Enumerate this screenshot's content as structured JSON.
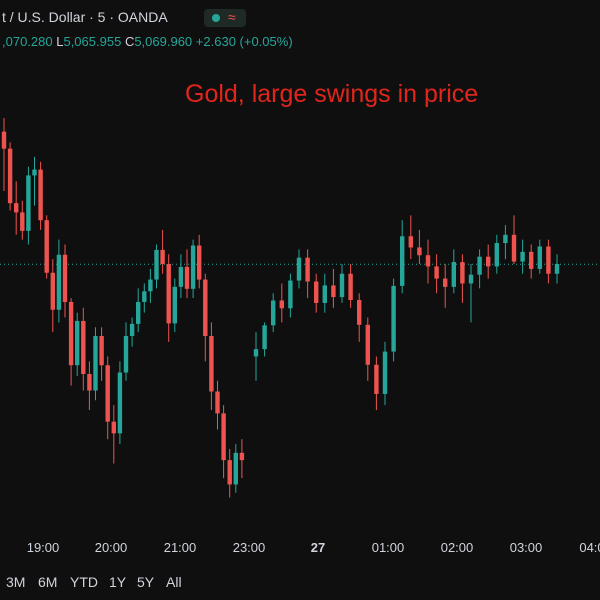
{
  "header": {
    "symbol_text": "t / U.S. Dollar · 5 · OANDA",
    "status_glyph": "≈",
    "open_value": ",070.280",
    "low_label": "L",
    "low_value": "5,065.955",
    "close_label": "C",
    "close_value": "5,069.960",
    "change": "+2.630 (+0.05%)"
  },
  "annotation": "Gold, large swings in price",
  "colors": {
    "background": "#0f0f0f",
    "up": "#26a69a",
    "down": "#ef5350",
    "annotation": "#e0261c",
    "price_line": "#26a69a"
  },
  "time_axis": {
    "ticks": [
      "19:00",
      "20:00",
      "21:00",
      "23:00",
      "27",
      "01:00",
      "02:00",
      "03:00",
      "04:0"
    ]
  },
  "range_buttons": [
    "3M",
    "6M",
    "YTD",
    "1Y",
    "5Y",
    "All"
  ],
  "chart_data": {
    "type": "candlestick",
    "interval": "5 minutes",
    "current_price": 5069.96,
    "ylim": [
      5020,
      5110
    ],
    "candles": [
      {
        "o": 5097.2,
        "h": 5100.0,
        "l": 5085.0,
        "c": 5093.7
      },
      {
        "o": 5093.7,
        "h": 5095.0,
        "l": 5081.0,
        "c": 5082.5
      },
      {
        "o": 5082.5,
        "h": 5087.0,
        "l": 5076.0,
        "c": 5080.6
      },
      {
        "o": 5080.6,
        "h": 5083.0,
        "l": 5075.0,
        "c": 5076.8
      },
      {
        "o": 5076.8,
        "h": 5090.0,
        "l": 5074.0,
        "c": 5088.2
      },
      {
        "o": 5088.2,
        "h": 5092.0,
        "l": 5082.0,
        "c": 5089.4
      },
      {
        "o": 5089.4,
        "h": 5091.0,
        "l": 5077.0,
        "c": 5079.0
      },
      {
        "o": 5079.0,
        "h": 5080.0,
        "l": 5067.0,
        "c": 5068.2
      },
      {
        "o": 5068.2,
        "h": 5071.0,
        "l": 5056.0,
        "c": 5060.6
      },
      {
        "o": 5060.6,
        "h": 5075.0,
        "l": 5058.0,
        "c": 5071.9
      },
      {
        "o": 5071.9,
        "h": 5074.0,
        "l": 5059.0,
        "c": 5062.2
      },
      {
        "o": 5062.2,
        "h": 5063.0,
        "l": 5045.0,
        "c": 5049.2
      },
      {
        "o": 5049.2,
        "h": 5060.0,
        "l": 5047.0,
        "c": 5058.3
      },
      {
        "o": 5058.3,
        "h": 5061.0,
        "l": 5044.0,
        "c": 5047.4
      },
      {
        "o": 5047.4,
        "h": 5050.0,
        "l": 5040.0,
        "c": 5044.0
      },
      {
        "o": 5044.0,
        "h": 5057.0,
        "l": 5042.0,
        "c": 5055.2
      },
      {
        "o": 5055.2,
        "h": 5057.0,
        "l": 5046.0,
        "c": 5049.2
      },
      {
        "o": 5049.2,
        "h": 5051.0,
        "l": 5034.0,
        "c": 5037.6
      },
      {
        "o": 5037.6,
        "h": 5041.0,
        "l": 5029.0,
        "c": 5035.2
      },
      {
        "o": 5035.2,
        "h": 5050.0,
        "l": 5033.0,
        "c": 5047.7
      },
      {
        "o": 5047.7,
        "h": 5058.0,
        "l": 5046.0,
        "c": 5055.2
      },
      {
        "o": 5055.2,
        "h": 5059.0,
        "l": 5053.0,
        "c": 5057.7
      },
      {
        "o": 5057.7,
        "h": 5065.0,
        "l": 5056.0,
        "c": 5062.2
      },
      {
        "o": 5062.2,
        "h": 5066.0,
        "l": 5060.0,
        "c": 5064.4
      },
      {
        "o": 5064.4,
        "h": 5069.0,
        "l": 5062.0,
        "c": 5066.8
      },
      {
        "o": 5066.8,
        "h": 5074.0,
        "l": 5065.0,
        "c": 5072.9
      },
      {
        "o": 5072.9,
        "h": 5077.0,
        "l": 5068.0,
        "c": 5070.0
      },
      {
        "o": 5070.0,
        "h": 5072.0,
        "l": 5054.0,
        "c": 5057.8
      },
      {
        "o": 5057.8,
        "h": 5067.0,
        "l": 5056.0,
        "c": 5065.3
      },
      {
        "o": 5065.3,
        "h": 5072.0,
        "l": 5063.0,
        "c": 5069.4
      },
      {
        "o": 5069.4,
        "h": 5073.0,
        "l": 5063.0,
        "c": 5064.9
      },
      {
        "o": 5064.9,
        "h": 5075.0,
        "l": 5063.0,
        "c": 5073.8
      },
      {
        "o": 5073.8,
        "h": 5076.0,
        "l": 5065.0,
        "c": 5066.8
      },
      {
        "o": 5066.8,
        "h": 5068.0,
        "l": 5050.0,
        "c": 5055.2
      },
      {
        "o": 5055.2,
        "h": 5058.0,
        "l": 5040.0,
        "c": 5043.8
      },
      {
        "o": 5043.8,
        "h": 5046.0,
        "l": 5036.0,
        "c": 5039.3
      },
      {
        "o": 5039.3,
        "h": 5041.0,
        "l": 5026.0,
        "c": 5029.7
      },
      {
        "o": 5029.7,
        "h": 5032.0,
        "l": 5022.0,
        "c": 5024.7
      },
      {
        "o": 5024.7,
        "h": 5033.0,
        "l": 5023.0,
        "c": 5031.2
      },
      {
        "o": 5031.2,
        "h": 5034.0,
        "l": 5026.0,
        "c": 5029.7
      }
    ],
    "candles_after_gap": [
      {
        "o": 5051.0,
        "h": 5056.0,
        "l": 5046.0,
        "c": 5052.5
      },
      {
        "o": 5052.5,
        "h": 5058.0,
        "l": 5051.0,
        "c": 5057.4
      },
      {
        "o": 5057.4,
        "h": 5064.0,
        "l": 5056.0,
        "c": 5062.5
      },
      {
        "o": 5062.5,
        "h": 5066.0,
        "l": 5058.0,
        "c": 5060.9
      },
      {
        "o": 5060.9,
        "h": 5068.0,
        "l": 5059.0,
        "c": 5066.6
      },
      {
        "o": 5066.6,
        "h": 5073.0,
        "l": 5065.0,
        "c": 5071.3
      },
      {
        "o": 5071.3,
        "h": 5073.0,
        "l": 5063.0,
        "c": 5066.4
      },
      {
        "o": 5066.4,
        "h": 5068.0,
        "l": 5060.0,
        "c": 5062.0
      },
      {
        "o": 5062.0,
        "h": 5068.0,
        "l": 5060.0,
        "c": 5065.6
      },
      {
        "o": 5065.6,
        "h": 5069.0,
        "l": 5061.0,
        "c": 5063.2
      },
      {
        "o": 5063.2,
        "h": 5070.0,
        "l": 5062.0,
        "c": 5068.0
      },
      {
        "o": 5068.0,
        "h": 5070.0,
        "l": 5061.0,
        "c": 5062.6
      },
      {
        "o": 5062.6,
        "h": 5064.0,
        "l": 5054.0,
        "c": 5057.5
      },
      {
        "o": 5057.5,
        "h": 5059.0,
        "l": 5046.0,
        "c": 5049.3
      },
      {
        "o": 5049.3,
        "h": 5051.0,
        "l": 5040.0,
        "c": 5043.3
      },
      {
        "o": 5043.3,
        "h": 5054.0,
        "l": 5041.0,
        "c": 5052.0
      },
      {
        "o": 5052.0,
        "h": 5067.0,
        "l": 5050.0,
        "c": 5065.5
      },
      {
        "o": 5065.5,
        "h": 5079.0,
        "l": 5064.0,
        "c": 5075.7
      },
      {
        "o": 5075.7,
        "h": 5080.0,
        "l": 5071.0,
        "c": 5073.4
      },
      {
        "o": 5073.4,
        "h": 5077.0,
        "l": 5070.0,
        "c": 5071.8
      },
      {
        "o": 5071.8,
        "h": 5075.0,
        "l": 5066.0,
        "c": 5069.5
      },
      {
        "o": 5069.5,
        "h": 5072.0,
        "l": 5064.0,
        "c": 5067.0
      },
      {
        "o": 5067.0,
        "h": 5070.0,
        "l": 5061.0,
        "c": 5065.3
      },
      {
        "o": 5065.3,
        "h": 5073.0,
        "l": 5064.0,
        "c": 5070.4
      },
      {
        "o": 5070.4,
        "h": 5072.0,
        "l": 5062.0,
        "c": 5066.0
      },
      {
        "o": 5066.0,
        "h": 5070.0,
        "l": 5058.0,
        "c": 5067.8
      },
      {
        "o": 5067.8,
        "h": 5073.0,
        "l": 5065.0,
        "c": 5071.5
      },
      {
        "o": 5071.5,
        "h": 5074.0,
        "l": 5067.0,
        "c": 5069.5
      },
      {
        "o": 5069.5,
        "h": 5076.0,
        "l": 5068.0,
        "c": 5074.3
      },
      {
        "o": 5074.3,
        "h": 5078.0,
        "l": 5071.0,
        "c": 5076.0
      },
      {
        "o": 5076.0,
        "h": 5080.0,
        "l": 5070.0,
        "c": 5070.5
      },
      {
        "o": 5070.5,
        "h": 5075.0,
        "l": 5068.0,
        "c": 5072.5
      },
      {
        "o": 5072.5,
        "h": 5074.0,
        "l": 5067.0,
        "c": 5069.0
      },
      {
        "o": 5069.0,
        "h": 5075.0,
        "l": 5068.0,
        "c": 5073.6
      },
      {
        "o": 5073.6,
        "h": 5075.0,
        "l": 5066.0,
        "c": 5068.0
      },
      {
        "o": 5068.0,
        "h": 5072.0,
        "l": 5066.0,
        "c": 5070.0
      }
    ]
  }
}
